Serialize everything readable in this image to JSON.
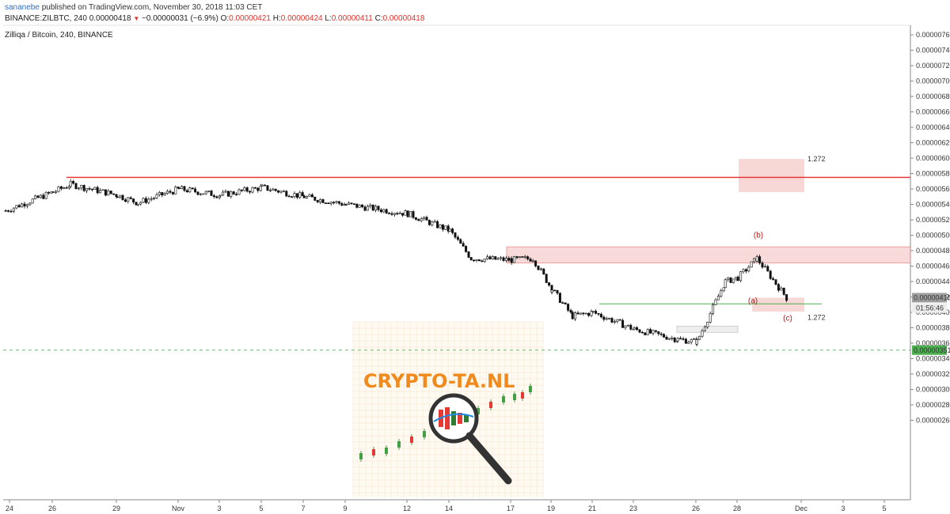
{
  "header": {
    "author": "sananebe",
    "published_text": " published on TradingView.com, November 30, 2018 11:03 CET",
    "pair_label": "BINANCE:ZILBTC, 240",
    "last_value": "0.00000418",
    "arrow": "▼",
    "change": "−0.00000031 (−6.9%)",
    "o_label": "O:",
    "o_value": "0.00000421",
    "h_label": "H:",
    "h_value": "0.00000424",
    "l_label": "L:",
    "l_value": "0.00000411",
    "c_label": "C:",
    "c_value": "0.00000418"
  },
  "symbol_title": "Zilliqa / Bitcoin, 240, BINANCE",
  "watermark": {
    "brand_text": "CRYPTO-TA.NL",
    "brand_color": "#f08a1c"
  },
  "colors": {
    "up": "#ffffff",
    "down": "#111111",
    "resistance_line": "#e53935",
    "zone_fill": "#f5c6c6",
    "support_line": "#4caf50",
    "dashed_line": "#66bb6a",
    "label_red": "#b71c1c",
    "fib_label": "#e57373",
    "price_badge": "#9e9e9e",
    "dashed_badge": "#4caf50"
  },
  "chart_data": {
    "type": "candlestick",
    "title": "Zilliqa / Bitcoin, 240, BINANCE",
    "x_tick_labels": [
      "24",
      "26",
      "29",
      "Nov",
      "3",
      "5",
      "7",
      "9",
      "12",
      "14",
      "17",
      "19",
      "21",
      "23",
      "26",
      "28",
      "Dec",
      "3",
      "5"
    ],
    "y_tick_labels": [
      "0.00000760",
      "0.00000740",
      "0.00000720",
      "0.00000700",
      "0.00000680",
      "0.00000660",
      "0.00000640",
      "0.00000620",
      "0.00000600",
      "0.00000580",
      "0.00000560",
      "0.00000540",
      "0.00000520",
      "0.00000500",
      "0.00000480",
      "0.00000460",
      "0.00000440",
      "0.00000420",
      "0.00000400",
      "0.00000380",
      "0.00000360",
      "0.00000340",
      "0.00000320",
      "0.00000300",
      "0.00000280",
      "0.00000260"
    ],
    "ylim": [
      2.52e-06,
      7.68e-06
    ],
    "approx_close_path": [
      {
        "date": "Oct 24",
        "close": 5.32e-06
      },
      {
        "date": "Oct 26",
        "close": 5.56e-06
      },
      {
        "date": "Oct 27",
        "close": 5.66e-06
      },
      {
        "date": "Oct 29",
        "close": 5.52e-06
      },
      {
        "date": "Oct 30",
        "close": 5.42e-06
      },
      {
        "date": "Nov 1",
        "close": 5.6e-06
      },
      {
        "date": "Nov 3",
        "close": 5.52e-06
      },
      {
        "date": "Nov 5",
        "close": 5.62e-06
      },
      {
        "date": "Nov 7",
        "close": 5.5e-06
      },
      {
        "date": "Nov 9",
        "close": 5.4e-06
      },
      {
        "date": "Nov 12",
        "close": 5.28e-06
      },
      {
        "date": "Nov 14",
        "close": 5.06e-06
      },
      {
        "date": "Nov 15",
        "close": 4.7e-06
      },
      {
        "date": "Nov 17",
        "close": 4.68e-06
      },
      {
        "date": "Nov 18",
        "close": 4.7e-06
      },
      {
        "date": "Nov 19",
        "close": 4.3e-06
      },
      {
        "date": "Nov 20",
        "close": 3.95e-06
      },
      {
        "date": "Nov 21",
        "close": 4e-06
      },
      {
        "date": "Nov 23",
        "close": 3.78e-06
      },
      {
        "date": "Nov 25",
        "close": 3.65e-06
      },
      {
        "date": "Nov 26",
        "close": 3.62e-06
      },
      {
        "date": "Nov 27",
        "close": 4.4e-06
      },
      {
        "date": "Nov 28",
        "close": 4.45e-06
      },
      {
        "date": "Nov 29",
        "close": 4.7e-06
      },
      {
        "date": "Nov 30",
        "close": 4.18e-06
      }
    ],
    "horizontal_levels": {
      "resistance": 5.75e-06,
      "upper_zone": [
        4.64e-06,
        4.85e-06
      ],
      "support": 4.11e-06,
      "dashed": 3.51e-06
    },
    "fib_targets": [
      {
        "label": "1.272",
        "low": 5.56e-06,
        "high": 5.99e-06
      },
      {
        "label": "1.272",
        "low": 4.01e-06,
        "high": 4.19e-06
      }
    ],
    "wave_labels": [
      "(a)",
      "(b)",
      "(c)"
    ],
    "price_badges": {
      "last": "0.00000418",
      "countdown": "01:56:46",
      "dashed": "0.00000351"
    },
    "grid": false,
    "y_axis_side": "right"
  }
}
